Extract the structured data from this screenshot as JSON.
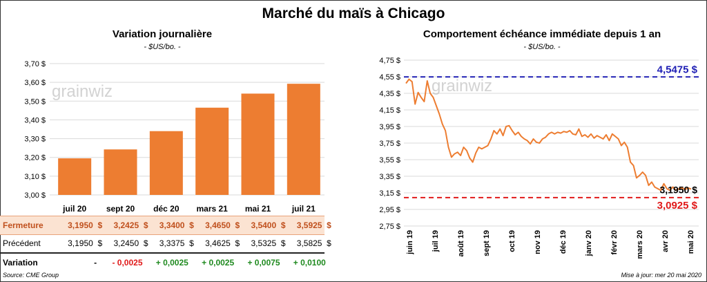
{
  "title": "Marché du maïs à Chicago",
  "left": {
    "title": "Variation journalière",
    "subtitle": "- $US/bo. -",
    "watermark": "grainwiz",
    "table": {
      "row_labels": [
        "Fermeture",
        "Précédent",
        "Variation"
      ],
      "close": [
        "3,1950  $",
        "3,2425  $",
        "3,3400  $",
        "3,4650  $",
        "3,5400  $",
        "3,5925  $"
      ],
      "previous": [
        "3,1950  $",
        "3,2450  $",
        "3,3375  $",
        "3,4625  $",
        "3,5325  $",
        "3,5825  $"
      ],
      "variation": [
        "-",
        "- 0,0025",
        "+ 0,0025",
        "+ 0,0025",
        "+ 0,0075",
        "+ 0,0100"
      ]
    }
  },
  "right": {
    "title": "Comportement  échéance immédiate  depuis 1 an",
    "subtitle": "- $US/bo. -",
    "watermark": "grainwiz"
  },
  "source": "Source: CME Group",
  "updated": "Mise à jour: mer 20 mai 2020",
  "colors": {
    "bar": "#ed7d31",
    "line": "#ed7d31",
    "max_line": "#1f1fb4",
    "min_line": "#e01919",
    "negative": "#e01919",
    "positive": "#1f8a1f"
  },
  "chart_data": [
    {
      "type": "bar",
      "categories": [
        "juil 20",
        "sept 20",
        "déc 20",
        "mars 21",
        "mai 21",
        "juil 21"
      ],
      "values": [
        3.195,
        3.2425,
        3.34,
        3.465,
        3.54,
        3.5925
      ],
      "ylim": [
        3.0,
        3.7
      ],
      "yticks": [
        "3,00 $",
        "3,10 $",
        "3,20 $",
        "3,30 $",
        "3,40 $",
        "3,50 $",
        "3,60 $",
        "3,70 $"
      ],
      "grid": true
    },
    {
      "type": "line",
      "x_labels": [
        "juin 19",
        "juil 19",
        "août 19",
        "sept 19",
        "oct 19",
        "nov 19",
        "déc 19",
        "janv 20",
        "févr 20",
        "mars 20",
        "avr 20",
        "mai 20"
      ],
      "values": [
        4.47,
        4.52,
        4.49,
        4.22,
        4.36,
        4.3,
        4.25,
        4.5,
        4.35,
        4.3,
        4.2,
        4.1,
        3.98,
        3.9,
        3.7,
        3.58,
        3.62,
        3.64,
        3.6,
        3.7,
        3.66,
        3.57,
        3.52,
        3.63,
        3.7,
        3.68,
        3.7,
        3.72,
        3.8,
        3.9,
        3.86,
        3.92,
        3.84,
        3.95,
        3.96,
        3.9,
        3.85,
        3.88,
        3.83,
        3.8,
        3.78,
        3.74,
        3.8,
        3.76,
        3.75,
        3.8,
        3.82,
        3.86,
        3.88,
        3.86,
        3.88,
        3.87,
        3.89,
        3.88,
        3.9,
        3.86,
        3.85,
        3.92,
        3.83,
        3.85,
        3.82,
        3.86,
        3.81,
        3.84,
        3.82,
        3.8,
        3.85,
        3.78,
        3.86,
        3.83,
        3.8,
        3.72,
        3.76,
        3.7,
        3.52,
        3.48,
        3.33,
        3.36,
        3.4,
        3.36,
        3.24,
        3.28,
        3.22,
        3.2,
        3.18,
        3.26,
        3.2,
        3.18,
        3.22,
        3.18,
        3.2,
        3.21,
        3.19,
        3.21,
        3.195
      ],
      "ylim": [
        2.75,
        4.75
      ],
      "yticks": [
        "2,75 $",
        "2,95 $",
        "3,15 $",
        "3,35 $",
        "3,55 $",
        "3,75 $",
        "3,95 $",
        "4,15 $",
        "4,35 $",
        "4,55 $",
        "4,75 $"
      ],
      "max": {
        "value": 4.5475,
        "label": "4,5475 $"
      },
      "min": {
        "value": 3.0925,
        "label": "3,0925 $"
      },
      "last": {
        "value": 3.195,
        "label": "3,1950 $"
      },
      "grid": true
    }
  ]
}
